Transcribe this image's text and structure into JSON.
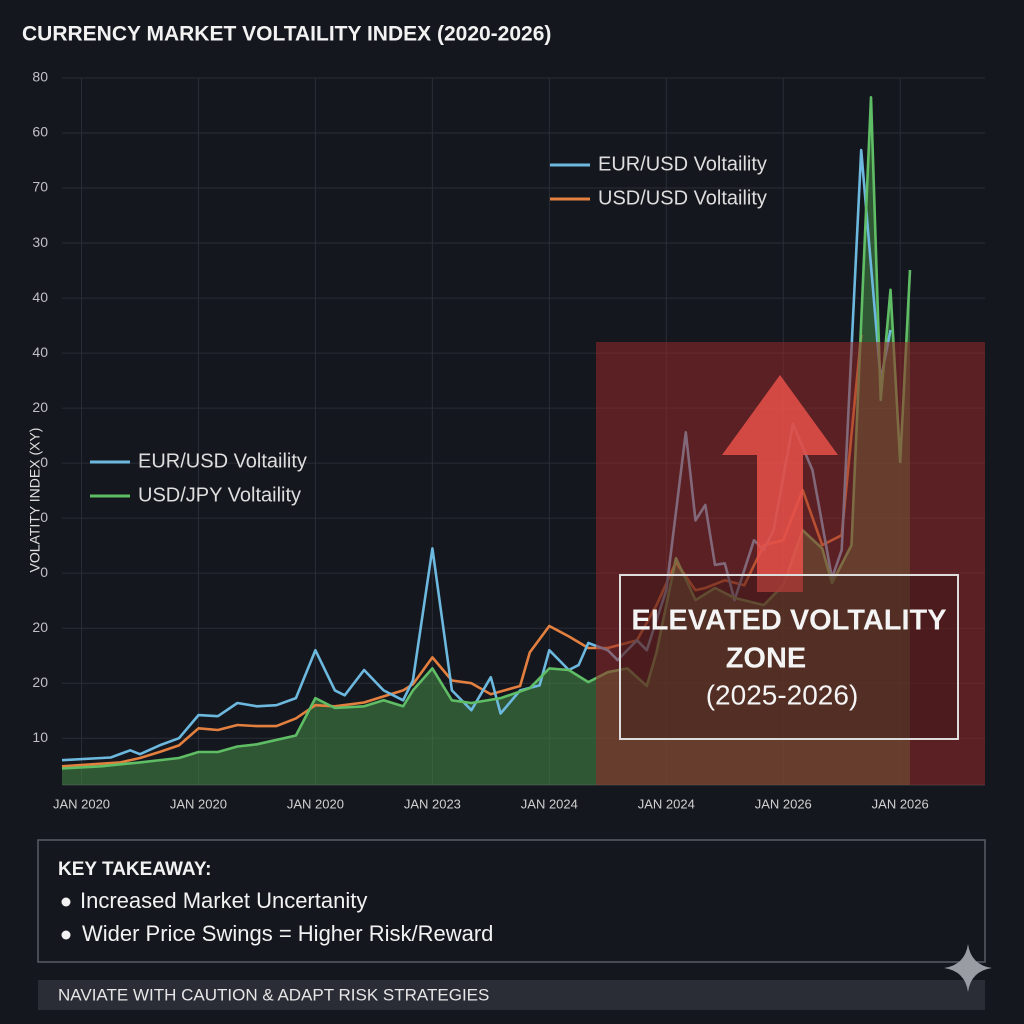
{
  "chart_data": {
    "type": "line",
    "title": "CURRENCY MARKET VOLTAILITY INDEX (2020-2026)",
    "y_label": "VOLATITY INDEX (XY)",
    "xlim": [
      -2,
      92.7
    ],
    "xticks": [
      {
        "value": 0,
        "label": "JAN 2020"
      },
      {
        "value": 12,
        "label": "JAN 2020"
      },
      {
        "value": 24,
        "label": "JAN 2020"
      },
      {
        "value": 36,
        "label": "JAN 2023"
      },
      {
        "value": 48,
        "label": "JAN 2024"
      },
      {
        "value": 60,
        "label": "JAN 2024"
      },
      {
        "value": 72,
        "label": "JAN 2026"
      },
      {
        "value": 84,
        "label": "JAN 2026"
      }
    ],
    "ylim": [
      1.5,
      130
    ],
    "yticks": [
      10,
      20,
      {
        "value": 30,
        "label": "20"
      },
      {
        "value": 40,
        "label": "0"
      },
      {
        "value": 50,
        "label": "0"
      },
      {
        "value": 60,
        "label": "0"
      },
      {
        "value": 70,
        "label": "20"
      },
      {
        "value": 80,
        "label": "40"
      },
      {
        "value": 90,
        "label": "40"
      },
      {
        "value": 100,
        "label": "30"
      },
      {
        "value": 110,
        "label": "70"
      },
      {
        "value": 120,
        "label": "60"
      },
      {
        "value": 130,
        "label": "80"
      }
    ],
    "grid": true,
    "series": [
      {
        "name": "EUR/USD Voltaility",
        "color": "#6cb8de",
        "x": [
          -2,
          3,
          5,
          6,
          8,
          10,
          12,
          14,
          16,
          18,
          20,
          22,
          24,
          26,
          27,
          29,
          31,
          33,
          34,
          36,
          38,
          40,
          42,
          43,
          45,
          47,
          48,
          50,
          51,
          52,
          54,
          55,
          57,
          58,
          60,
          62,
          63,
          64,
          65,
          66,
          67,
          69,
          70,
          71,
          73,
          75,
          77,
          78,
          80,
          82,
          83
        ],
        "values": [
          6.0,
          6.5,
          7.8,
          7.1,
          8.7,
          10,
          14.2,
          14,
          16.4,
          15.8,
          16,
          17.3,
          26,
          18.7,
          17.8,
          22.4,
          18.7,
          16.9,
          20.5,
          44.5,
          18.7,
          15.1,
          21.1,
          14.5,
          18.7,
          19.6,
          26,
          22.4,
          23.3,
          27.3,
          26,
          24.2,
          27.8,
          26,
          36.9,
          65.6,
          49.6,
          52.4,
          41.5,
          41.8,
          35.1,
          46,
          44.2,
          47.8,
          67.1,
          58.7,
          39.1,
          44.2,
          116.9,
          75.1,
          84.2
        ]
      },
      {
        "name": "USD/USD Voltaility",
        "color": "#e3803f",
        "x": [
          -2,
          4,
          6,
          8,
          10,
          12,
          14,
          16,
          18,
          20,
          22,
          24,
          26,
          29,
          31,
          33,
          34,
          36,
          38,
          40,
          42,
          45,
          46,
          48,
          50,
          52,
          54,
          57,
          59,
          61,
          63,
          64,
          66,
          68,
          70,
          72,
          74,
          76,
          78,
          80
        ],
        "values": [
          4.9,
          5.6,
          6.4,
          7.5,
          8.7,
          11.8,
          11.5,
          12.4,
          12.2,
          12.2,
          13.6,
          16,
          15.8,
          16.5,
          17.6,
          18.7,
          19.8,
          24.7,
          20.5,
          20,
          18,
          19.5,
          25.6,
          30.4,
          28.5,
          26.4,
          26.4,
          27.8,
          34.2,
          42,
          36.9,
          37.3,
          38.7,
          37.8,
          45.1,
          46,
          55.1,
          45.1,
          46.9,
          83.3
        ]
      },
      {
        "name": "USD/JPY Voltaility",
        "color": "#5fbd65",
        "x": [
          -2,
          2,
          6,
          10,
          12,
          14,
          16,
          18,
          22,
          24,
          26,
          29,
          31,
          33,
          34,
          36,
          38,
          40,
          43,
          46,
          48,
          50,
          52,
          54,
          56,
          58,
          59,
          61,
          63,
          65,
          67,
          70,
          72,
          74,
          76,
          77,
          79,
          81,
          82,
          83,
          84,
          85
        ],
        "values": [
          4.5,
          4.9,
          5.6,
          6.4,
          7.5,
          7.5,
          8.5,
          8.9,
          10.5,
          17.3,
          15.5,
          15.8,
          16.9,
          15.8,
          18.7,
          22.7,
          16.9,
          16.4,
          17.3,
          19.1,
          22.7,
          22.4,
          20.2,
          22,
          22.7,
          19.5,
          25.6,
          42.7,
          35.1,
          37.3,
          35.5,
          34.2,
          37.8,
          47.8,
          44.5,
          38.2,
          45.1,
          126.5,
          71.5,
          91.5,
          60.2,
          95.1
        ],
        "area": true
      }
    ],
    "legends": [
      {
        "position": "upper-center",
        "series": [
          0,
          1
        ]
      },
      {
        "position": "middle-left",
        "series": [
          0,
          2
        ]
      }
    ],
    "zone_label": [
      "ELEVATED VOLTALITY",
      "ZONE",
      "(2025-2026)"
    ]
  },
  "takeaway": {
    "title": "KEY TAKEAWAY:",
    "items": [
      "Increased Market Uncertanity",
      "Wider Price Swings = Higher Risk/Reward"
    ]
  },
  "footer": "NAVIATE WITH CAUTION & ADAPT RISK STRATEGIES"
}
